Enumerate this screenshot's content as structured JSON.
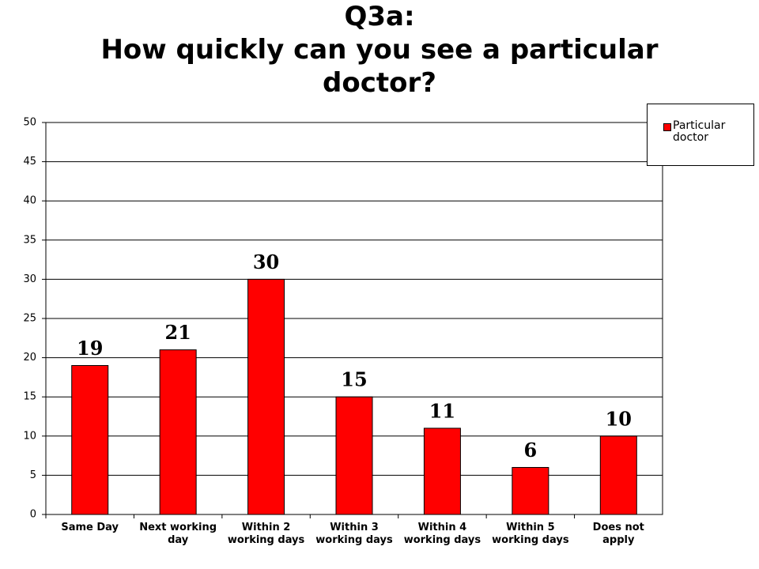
{
  "chart_data": {
    "type": "bar",
    "title": "Q3a:",
    "subtitle": "How quickly can you see a particular doctor?",
    "categories": [
      "Same Day",
      "Next working day",
      "Within 2 working days",
      "Within 3 working days",
      "Within 4 working days",
      "Within 5 working days",
      "Does not apply"
    ],
    "series": [
      {
        "name": "Particular doctor",
        "color": "#ff0000",
        "values": [
          19,
          21,
          30,
          15,
          11,
          6,
          10
        ]
      }
    ],
    "ylim": [
      0,
      50
    ],
    "yticks": [
      0,
      5,
      10,
      15,
      20,
      25,
      30,
      35,
      40,
      45,
      50
    ],
    "grid": true,
    "legend": "top-right"
  }
}
